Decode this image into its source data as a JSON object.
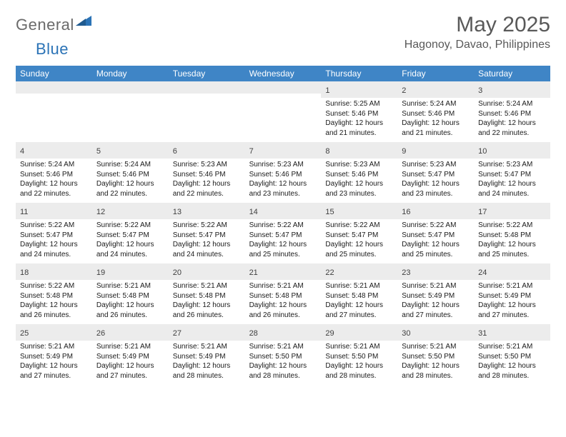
{
  "brand": {
    "general": "General",
    "blue": "Blue"
  },
  "title": "May 2025",
  "location": "Hagonoy, Davao, Philippines",
  "colors": {
    "header_bg": "#3f85c6",
    "band_bg": "#ececec",
    "title_color": "#595959",
    "text_color": "#1a1a1a",
    "brand_gray": "#6a6a6a",
    "brand_blue": "#2b73b6"
  },
  "typography": {
    "title_fontsize": 30,
    "location_fontsize": 16,
    "dayhead_fontsize": 12,
    "daynum_fontsize": 11,
    "body_fontsize": 10
  },
  "dayheads": [
    "Sunday",
    "Monday",
    "Tuesday",
    "Wednesday",
    "Thursday",
    "Friday",
    "Saturday"
  ],
  "weeks": [
    [
      {
        "n": "",
        "sunrise": "",
        "sunset": "",
        "daylight": ""
      },
      {
        "n": "",
        "sunrise": "",
        "sunset": "",
        "daylight": ""
      },
      {
        "n": "",
        "sunrise": "",
        "sunset": "",
        "daylight": ""
      },
      {
        "n": "",
        "sunrise": "",
        "sunset": "",
        "daylight": ""
      },
      {
        "n": "1",
        "sunrise": "Sunrise: 5:25 AM",
        "sunset": "Sunset: 5:46 PM",
        "daylight": "Daylight: 12 hours and 21 minutes."
      },
      {
        "n": "2",
        "sunrise": "Sunrise: 5:24 AM",
        "sunset": "Sunset: 5:46 PM",
        "daylight": "Daylight: 12 hours and 21 minutes."
      },
      {
        "n": "3",
        "sunrise": "Sunrise: 5:24 AM",
        "sunset": "Sunset: 5:46 PM",
        "daylight": "Daylight: 12 hours and 22 minutes."
      }
    ],
    [
      {
        "n": "4",
        "sunrise": "Sunrise: 5:24 AM",
        "sunset": "Sunset: 5:46 PM",
        "daylight": "Daylight: 12 hours and 22 minutes."
      },
      {
        "n": "5",
        "sunrise": "Sunrise: 5:24 AM",
        "sunset": "Sunset: 5:46 PM",
        "daylight": "Daylight: 12 hours and 22 minutes."
      },
      {
        "n": "6",
        "sunrise": "Sunrise: 5:23 AM",
        "sunset": "Sunset: 5:46 PM",
        "daylight": "Daylight: 12 hours and 22 minutes."
      },
      {
        "n": "7",
        "sunrise": "Sunrise: 5:23 AM",
        "sunset": "Sunset: 5:46 PM",
        "daylight": "Daylight: 12 hours and 23 minutes."
      },
      {
        "n": "8",
        "sunrise": "Sunrise: 5:23 AM",
        "sunset": "Sunset: 5:46 PM",
        "daylight": "Daylight: 12 hours and 23 minutes."
      },
      {
        "n": "9",
        "sunrise": "Sunrise: 5:23 AM",
        "sunset": "Sunset: 5:47 PM",
        "daylight": "Daylight: 12 hours and 23 minutes."
      },
      {
        "n": "10",
        "sunrise": "Sunrise: 5:23 AM",
        "sunset": "Sunset: 5:47 PM",
        "daylight": "Daylight: 12 hours and 24 minutes."
      }
    ],
    [
      {
        "n": "11",
        "sunrise": "Sunrise: 5:22 AM",
        "sunset": "Sunset: 5:47 PM",
        "daylight": "Daylight: 12 hours and 24 minutes."
      },
      {
        "n": "12",
        "sunrise": "Sunrise: 5:22 AM",
        "sunset": "Sunset: 5:47 PM",
        "daylight": "Daylight: 12 hours and 24 minutes."
      },
      {
        "n": "13",
        "sunrise": "Sunrise: 5:22 AM",
        "sunset": "Sunset: 5:47 PM",
        "daylight": "Daylight: 12 hours and 24 minutes."
      },
      {
        "n": "14",
        "sunrise": "Sunrise: 5:22 AM",
        "sunset": "Sunset: 5:47 PM",
        "daylight": "Daylight: 12 hours and 25 minutes."
      },
      {
        "n": "15",
        "sunrise": "Sunrise: 5:22 AM",
        "sunset": "Sunset: 5:47 PM",
        "daylight": "Daylight: 12 hours and 25 minutes."
      },
      {
        "n": "16",
        "sunrise": "Sunrise: 5:22 AM",
        "sunset": "Sunset: 5:47 PM",
        "daylight": "Daylight: 12 hours and 25 minutes."
      },
      {
        "n": "17",
        "sunrise": "Sunrise: 5:22 AM",
        "sunset": "Sunset: 5:48 PM",
        "daylight": "Daylight: 12 hours and 25 minutes."
      }
    ],
    [
      {
        "n": "18",
        "sunrise": "Sunrise: 5:22 AM",
        "sunset": "Sunset: 5:48 PM",
        "daylight": "Daylight: 12 hours and 26 minutes."
      },
      {
        "n": "19",
        "sunrise": "Sunrise: 5:21 AM",
        "sunset": "Sunset: 5:48 PM",
        "daylight": "Daylight: 12 hours and 26 minutes."
      },
      {
        "n": "20",
        "sunrise": "Sunrise: 5:21 AM",
        "sunset": "Sunset: 5:48 PM",
        "daylight": "Daylight: 12 hours and 26 minutes."
      },
      {
        "n": "21",
        "sunrise": "Sunrise: 5:21 AM",
        "sunset": "Sunset: 5:48 PM",
        "daylight": "Daylight: 12 hours and 26 minutes."
      },
      {
        "n": "22",
        "sunrise": "Sunrise: 5:21 AM",
        "sunset": "Sunset: 5:48 PM",
        "daylight": "Daylight: 12 hours and 27 minutes."
      },
      {
        "n": "23",
        "sunrise": "Sunrise: 5:21 AM",
        "sunset": "Sunset: 5:49 PM",
        "daylight": "Daylight: 12 hours and 27 minutes."
      },
      {
        "n": "24",
        "sunrise": "Sunrise: 5:21 AM",
        "sunset": "Sunset: 5:49 PM",
        "daylight": "Daylight: 12 hours and 27 minutes."
      }
    ],
    [
      {
        "n": "25",
        "sunrise": "Sunrise: 5:21 AM",
        "sunset": "Sunset: 5:49 PM",
        "daylight": "Daylight: 12 hours and 27 minutes."
      },
      {
        "n": "26",
        "sunrise": "Sunrise: 5:21 AM",
        "sunset": "Sunset: 5:49 PM",
        "daylight": "Daylight: 12 hours and 27 minutes."
      },
      {
        "n": "27",
        "sunrise": "Sunrise: 5:21 AM",
        "sunset": "Sunset: 5:49 PM",
        "daylight": "Daylight: 12 hours and 28 minutes."
      },
      {
        "n": "28",
        "sunrise": "Sunrise: 5:21 AM",
        "sunset": "Sunset: 5:50 PM",
        "daylight": "Daylight: 12 hours and 28 minutes."
      },
      {
        "n": "29",
        "sunrise": "Sunrise: 5:21 AM",
        "sunset": "Sunset: 5:50 PM",
        "daylight": "Daylight: 12 hours and 28 minutes."
      },
      {
        "n": "30",
        "sunrise": "Sunrise: 5:21 AM",
        "sunset": "Sunset: 5:50 PM",
        "daylight": "Daylight: 12 hours and 28 minutes."
      },
      {
        "n": "31",
        "sunrise": "Sunrise: 5:21 AM",
        "sunset": "Sunset: 5:50 PM",
        "daylight": "Daylight: 12 hours and 28 minutes."
      }
    ]
  ]
}
